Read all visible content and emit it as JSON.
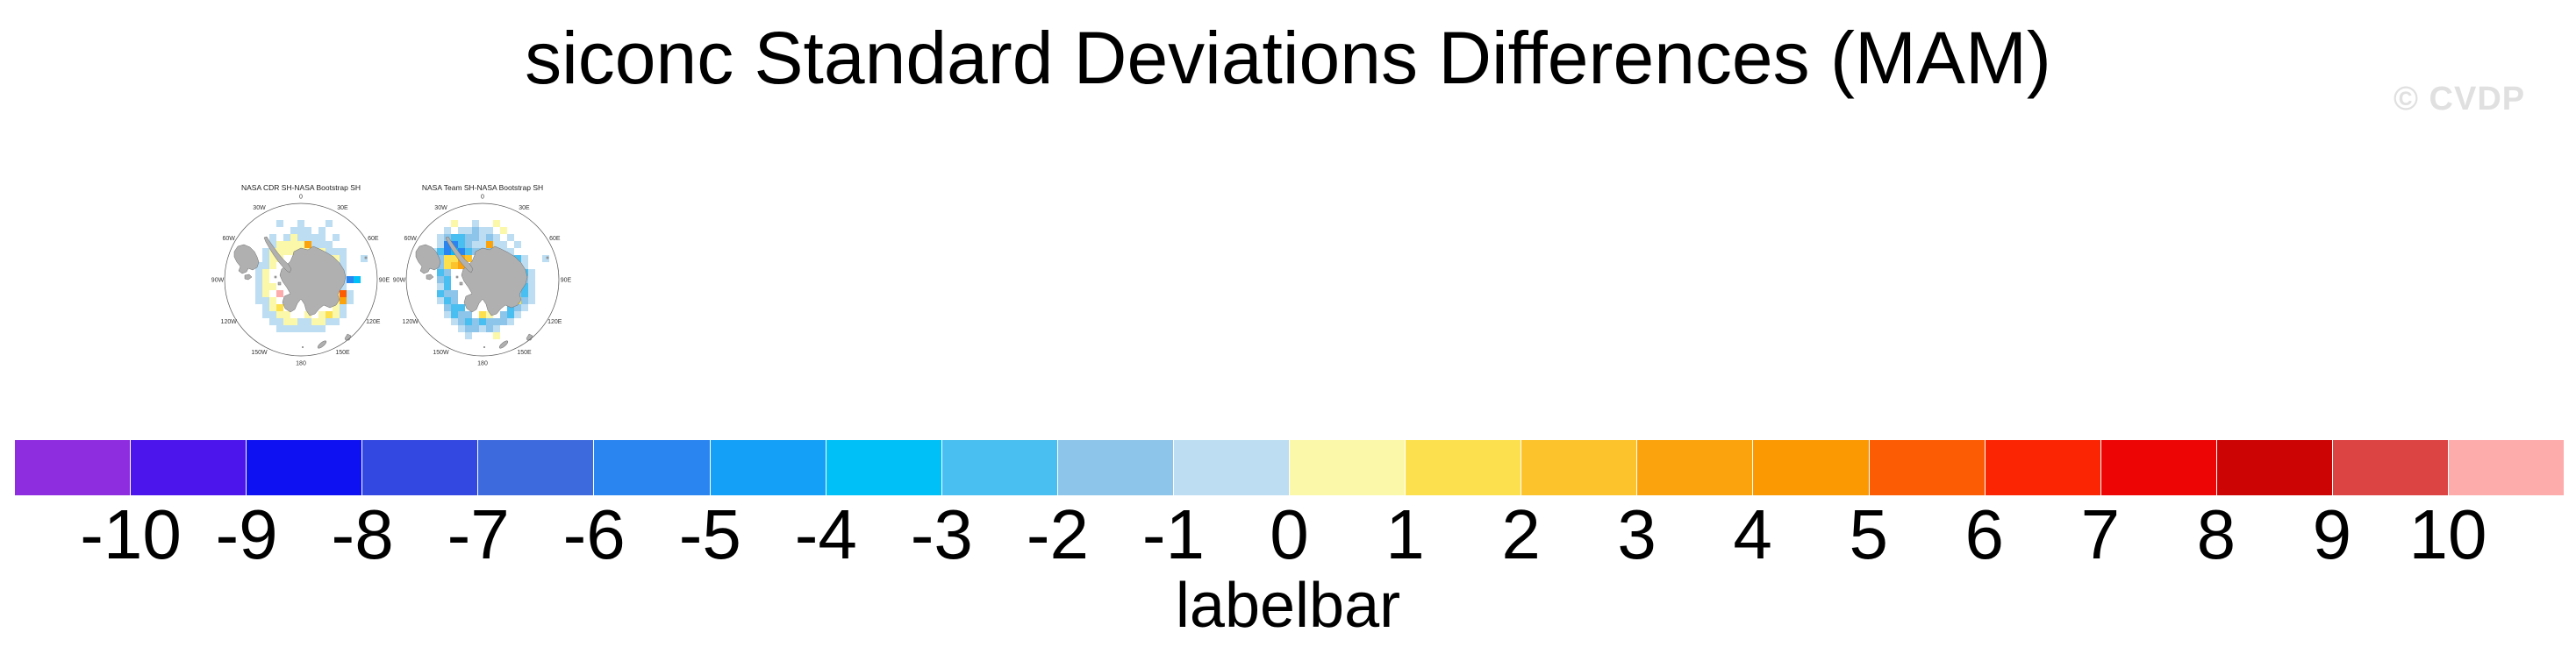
{
  "title": "siconc Standard Deviations Differences (MAM)",
  "watermark": "© CVDP",
  "colorbar": {
    "caption": "labelbar"
  },
  "cell_colors": {
    "L": "#bcddf2",
    "M": "#8cc5e9",
    "S": "#49bef0",
    "D": "#2a85f1",
    "C": "#00c0f8",
    "Y": "#fbf8a9",
    "G": "#fce04e",
    "A": "#fdc32d",
    "O": "#fba30c",
    "R": "#fc5d04",
    "P": "#fdabab"
  },
  "land_color": "#b0b0b0",
  "land_outline_color": "#6e6e6e",
  "circle_color": "#555555",
  "chart_data": {
    "type": "heatmap",
    "title": "siconc Standard Deviations Differences (MAM)",
    "subtitle": "",
    "variable": "siconc",
    "season": "MAM",
    "legend": {
      "label": "labelbar",
      "position": "bottom",
      "tick_labels": [
        "-10",
        "-9",
        "-8",
        "-7",
        "-6",
        "-5",
        "-4",
        "-3",
        "-2",
        "-1",
        "0",
        "1",
        "2",
        "3",
        "4",
        "5",
        "6",
        "7",
        "8",
        "9",
        "10"
      ],
      "ticks": [
        -10,
        -9,
        -8,
        -7,
        -6,
        -5,
        -4,
        -3,
        -2,
        -1,
        0,
        1,
        2,
        3,
        4,
        5,
        6,
        7,
        8,
        9,
        10
      ],
      "colors": [
        "#8e2ce0",
        "#4b15ec",
        "#0e11f2",
        "#3348e0",
        "#3d6bde",
        "#2a85f1",
        "#14a0f7",
        "#00c0f8",
        "#49bef0",
        "#8cc5e9",
        "#bcddf2",
        "#fbf8a9",
        "#fce04e",
        "#fdc32d",
        "#fba30c",
        "#fb9903",
        "#fc5d04",
        "#fb2503",
        "#ed0505",
        "#cc0404",
        "#dc4343",
        "#fdabab"
      ]
    },
    "panels": [
      {
        "name": "NASA CDR SH-NASA Bootstrap SH",
        "projection": "south-polar-stereographic",
        "compass_labels": [
          "0",
          "30E",
          "60E",
          "90E",
          "120E",
          "150E",
          "180",
          "150W",
          "120W",
          "90W",
          "60W",
          "30W"
        ],
        "grid_rows": [
          ".....................",
          ".....................",
          ".......L..L...L......",
          ".........LLL.L.......",
          "......L.LYLLLL.L.....",
          "......LYYYYOLLL......",
          ".....LYYYYYYOYLLL....",
          ".....LYY......YYL..L.",
          "....LLY........YL....",
          "....LY.........YL....",
          "....LY.........LLDC..",
          "....LYY........YL....",
          "....LY.P.......YRL...",
          "....LLY........YOL...",
          ".....LYG.......YL....",
          ".....LLYY..Y.YGYL....",
          "......LLYYLLYYLL.....",
          ".......LLLLLLL.......",
          ".....................",
          ".....................",
          "....................."
        ]
      },
      {
        "name": "NASA Team SH-NASA Bootstrap SH",
        "projection": "south-polar-stereographic",
        "compass_labels": [
          "0",
          "30E",
          "60E",
          "90E",
          "120E",
          "150E",
          "180",
          "150W",
          "120W",
          "90W",
          "60W",
          "30W"
        ],
        "grid_rows": [
          ".....................",
          ".....................",
          "......Y..L..Y........",
          ".....L.LLMLL.Y.......",
          "....LMSSMMLML.L......",
          "....LDDSMLLOLL.L.....",
          "...LSDCDSMMMMLL......",
          "...LMGGOA.....MSL..L.",
          "...LMGAO.......ML....",
          "....SM.........MSL...",
          "....MS.........SML...",
          "....LS.........MSL...",
          "....SMM........MSL...",
          "....LSM........GML...",
          ".....MSS......SML....",
          ".....LSMM.GY.MSL.....",
          "......LMSMSMMML......",
          ".......LMMLML........",
          "........L...Y........",
          ".....................",
          "....................."
        ]
      }
    ]
  }
}
